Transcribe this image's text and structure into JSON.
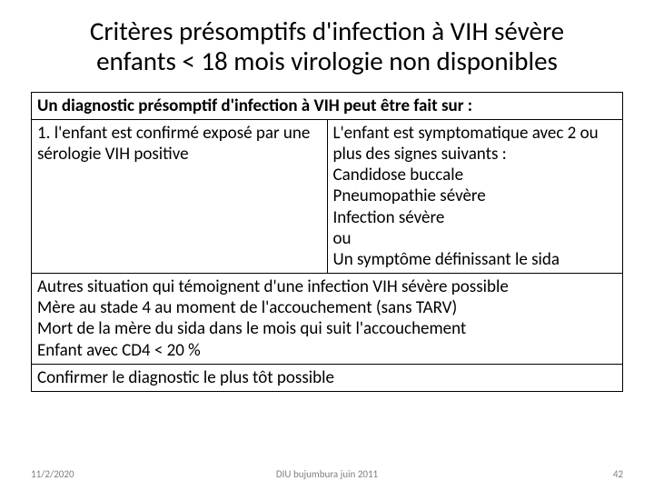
{
  "title_line1": "Critères présomptifs d'infection à VIH sévère",
  "title_line2": "enfants < 18 mois virologie non disponibles",
  "table": {
    "header": "Un diagnostic présomptif d'infection à VIH peut être fait sur :",
    "row1_left": "1. l'enfant est confirmé exposé par une sérologie VIH positive",
    "row1_right": "L'enfant est symptomatique  avec  2 ou plus  des signes suivants :\nCandidose buccale\nPneumopathie sévère\nInfection sévère\nou\nUn symptôme définissant le sida",
    "row2": "Autres situation qui témoignent d'une infection VIH sévère possible\nMère au stade 4 au moment de l'accouchement (sans TARV)\nMort de la mère du sida dans le mois qui suit l'accouchement\nEnfant avec CD4 < 20 %",
    "row3": "Confirmer le diagnostic le plus tôt possible"
  },
  "footer": {
    "date": "11/2/2020",
    "center": "DIU bujumbura juin 2011",
    "page": "42"
  },
  "colors": {
    "background": "#ffffff",
    "text": "#000000",
    "footer_text": "#7f7f7f",
    "border": "#000000"
  },
  "fonts": {
    "title_size": 29,
    "body_size": 19,
    "footer_size": 11
  }
}
